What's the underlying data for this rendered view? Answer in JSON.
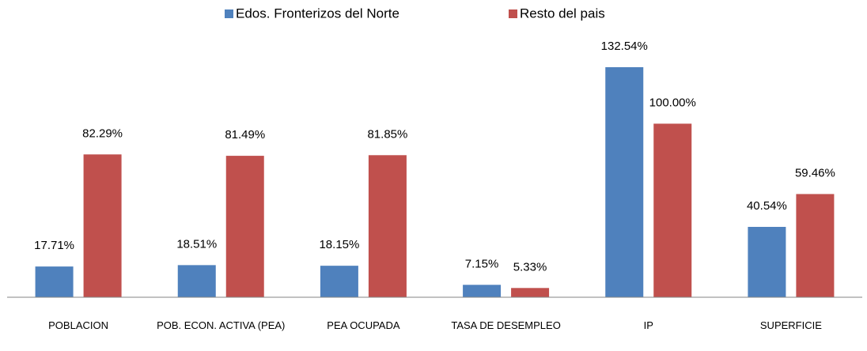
{
  "chart_data": {
    "type": "bar",
    "categories": [
      "POBLACION",
      "POB. ECON. ACTIVA (PEA)",
      "PEA OCUPADA",
      "TASA DE DESEMPLEO",
      "IP",
      "SUPERFICIE"
    ],
    "series": [
      {
        "name": "Edos. Fronterizos del Norte",
        "color": "#4f81bd",
        "values": [
          17.71,
          18.51,
          18.15,
          7.15,
          132.54,
          40.54
        ],
        "value_labels": [
          "17.71%",
          "18.51%",
          "18.15%",
          "7.15%",
          "132.54%",
          "40.54%"
        ]
      },
      {
        "name": "Resto del pais",
        "color": "#c0504d",
        "values": [
          82.29,
          81.49,
          81.85,
          5.33,
          100.0,
          59.46
        ],
        "value_labels": [
          "82.29%",
          "81.49%",
          "81.85%",
          "5.33%",
          "100.00%",
          "59.46%"
        ]
      }
    ],
    "legend": "top"
  }
}
